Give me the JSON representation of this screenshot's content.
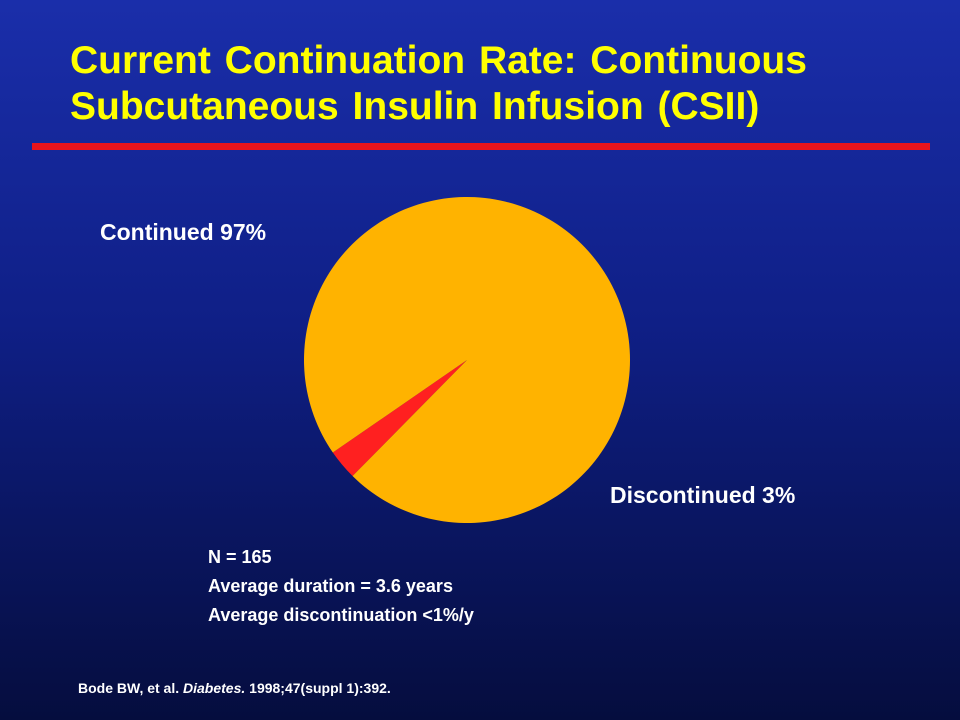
{
  "slide": {
    "title_line1": "Current Continuation Rate: Continuous",
    "title_line2": "Subcutaneous Insulin Infusion (CSII)",
    "rule_color": "#e8141c",
    "stats": [
      "N = 165",
      "Average duration = 3.6 years",
      "Average discontinuation <1%/y"
    ],
    "citation": {
      "authors": "Bode BW, et al. ",
      "journal": "Diabetes.",
      "details": " 1998;47(suppl 1):392."
    }
  },
  "chart_data": {
    "type": "pie",
    "slices": [
      {
        "label": "Continued 97%",
        "value": 97,
        "color": "#ffb300"
      },
      {
        "label": "Discontinued 3%",
        "value": 3,
        "color": "#ff2020"
      }
    ]
  }
}
